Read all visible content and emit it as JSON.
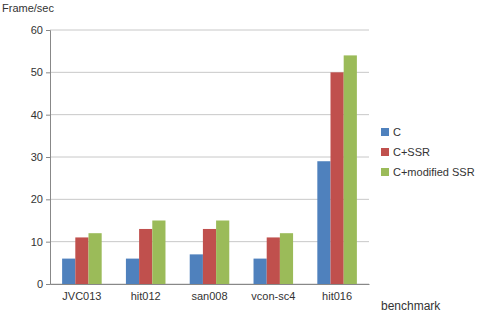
{
  "chart_data": {
    "type": "bar",
    "y_label": "Frame/sec",
    "x_label": "benchmark",
    "categories": [
      "JVC013",
      "hit012",
      "san008",
      "vcon-sc4",
      "hit016"
    ],
    "series": [
      {
        "name": "C",
        "color": "#4f81bd",
        "values": [
          6,
          6,
          7,
          6,
          29
        ]
      },
      {
        "name": "C+SSR",
        "color": "#c0504d",
        "values": [
          11,
          13,
          13,
          11,
          50
        ]
      },
      {
        "name": "C+modified SSR",
        "color": "#9bbb59",
        "values": [
          12,
          15,
          15,
          12,
          54
        ]
      }
    ],
    "ylim": [
      0,
      60
    ],
    "yticks": [
      0,
      10,
      20,
      30,
      40,
      50,
      60
    ],
    "grid": true,
    "legend": "right"
  }
}
